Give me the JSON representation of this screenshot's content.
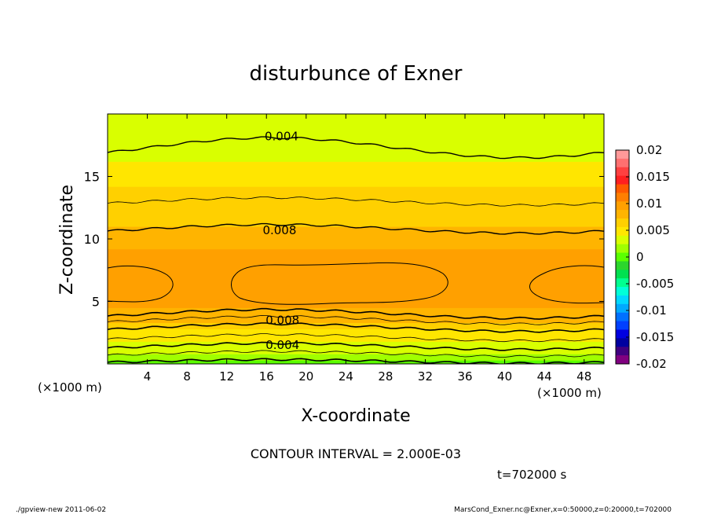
{
  "chart_data": {
    "type": "heatmap",
    "title": "disturbunce of Exner",
    "xlabel": "X-coordinate",
    "ylabel": "Z-coordinate",
    "x_unit_left": "(×1000 m)",
    "x_unit_right": "(×1000 m)",
    "xlim": [
      0,
      50
    ],
    "ylim": [
      0,
      20
    ],
    "x_ticks": [
      4,
      8,
      12,
      16,
      20,
      24,
      28,
      32,
      36,
      40,
      44,
      48
    ],
    "y_ticks": [
      5,
      10,
      15
    ],
    "contour_interval_text": "CONTOUR INTERVAL = 2.000E-03",
    "time_text": "t=702000 s",
    "contour_labels": [
      {
        "text": "0.004",
        "x": 15.7,
        "z": 18.2
      },
      {
        "text": "0.008",
        "x": 15.5,
        "z": 10.7
      },
      {
        "text": "0.008",
        "x": 15.8,
        "z": 3.5
      },
      {
        "text": "0.004",
        "x": 15.8,
        "z": 1.5
      }
    ],
    "profile": {
      "z": [
        0,
        0.3,
        0.8,
        1.3,
        1.8,
        2.3,
        2.8,
        3.3,
        3.8,
        4.5,
        5.5,
        6.5,
        7.5,
        8.3,
        9.2,
        10.0,
        11.0,
        12.2,
        13.2,
        14.2,
        15.2,
        16.2,
        17.2,
        18.2,
        19.2,
        20.0
      ],
      "value": [
        0.0,
        0.001,
        0.002,
        0.003,
        0.004,
        0.005,
        0.006,
        0.007,
        0.008,
        0.009,
        0.0095,
        0.0102,
        0.0098,
        0.0092,
        0.0085,
        0.0082,
        0.0076,
        0.0068,
        0.006,
        0.0053,
        0.0046,
        0.004,
        0.0036,
        0.0034,
        0.0032,
        0.003
      ]
    },
    "colorbar": {
      "tick_labels": [
        "0.02",
        "0.015",
        "0.01",
        "0.005",
        "0",
        "-0.005",
        "-0.01",
        "-0.015",
        "-0.02"
      ],
      "levels": [
        0.02,
        0.015,
        0.01,
        0.005,
        0,
        -0.005,
        -0.01,
        -0.015,
        -0.02
      ],
      "colors_top_to_bottom": [
        "#ff9999",
        "#ff7070",
        "#ff4040",
        "#ff2020",
        "#ff5a00",
        "#ff7f00",
        "#ffa000",
        "#ffb400",
        "#ffd000",
        "#ffe600",
        "#d9ff00",
        "#a0ff00",
        "#5aff00",
        "#2cd62c",
        "#00e050",
        "#00ff90",
        "#00ffd8",
        "#00d8ff",
        "#00aaff",
        "#0070ff",
        "#0040ff",
        "#0000e0",
        "#0000a0",
        "#400080",
        "#800080"
      ]
    }
  },
  "footer": {
    "left": "./gpview-new   2011-06-02",
    "right": "MarsCond_Exner.nc@Exner,x=0:50000,z=0:20000,t=702000"
  }
}
